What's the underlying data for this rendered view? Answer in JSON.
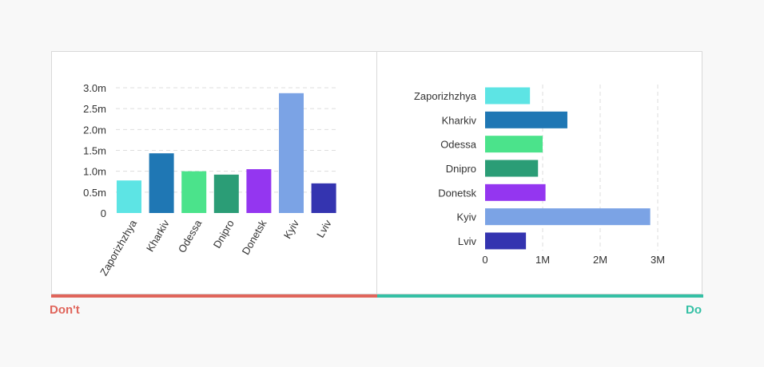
{
  "labels": {
    "dont": "Don't",
    "do": "Do"
  },
  "colors": {
    "dont": "#e0655b",
    "do": "#35c0a5",
    "grid": "#dddddd",
    "text": "#333333"
  },
  "chart_data": [
    {
      "type": "bar",
      "orientation": "vertical",
      "categories": [
        "Zaporizhzhya",
        "Kharkiv",
        "Odessa",
        "Dnipro",
        "Donetsk",
        "Kyiv",
        "Lviv"
      ],
      "values": [
        0.78,
        1.43,
        1.0,
        0.92,
        1.05,
        2.87,
        0.71
      ],
      "colors": [
        "#5de4e4",
        "#1f77b4",
        "#4be38b",
        "#2b9d76",
        "#9436f0",
        "#7ba3e5",
        "#3434b0"
      ],
      "ylim": [
        0,
        3.0
      ],
      "yticks": [
        "0",
        "0.5m",
        "1.0m",
        "1.5m",
        "2.0m",
        "2.5m",
        "3.0m"
      ],
      "ytick_values": [
        0,
        0.5,
        1.0,
        1.5,
        2.0,
        2.5,
        3.0
      ],
      "grid": "horizontal dashed",
      "category_label_rotation": "-60deg"
    },
    {
      "type": "bar",
      "orientation": "horizontal",
      "categories": [
        "Zaporizhzhya",
        "Kharkiv",
        "Odessa",
        "Dnipro",
        "Donetsk",
        "Kyiv",
        "Lviv"
      ],
      "values": [
        0.78,
        1.43,
        1.0,
        0.92,
        1.05,
        2.87,
        0.71
      ],
      "colors": [
        "#5de4e4",
        "#1f77b4",
        "#4be38b",
        "#2b9d76",
        "#9436f0",
        "#7ba3e5",
        "#3434b0"
      ],
      "xlim": [
        0,
        3.0
      ],
      "xticks": [
        "0",
        "1M",
        "2M",
        "3M"
      ],
      "xtick_values": [
        0,
        1,
        2,
        3
      ],
      "grid": "vertical dashed"
    }
  ]
}
